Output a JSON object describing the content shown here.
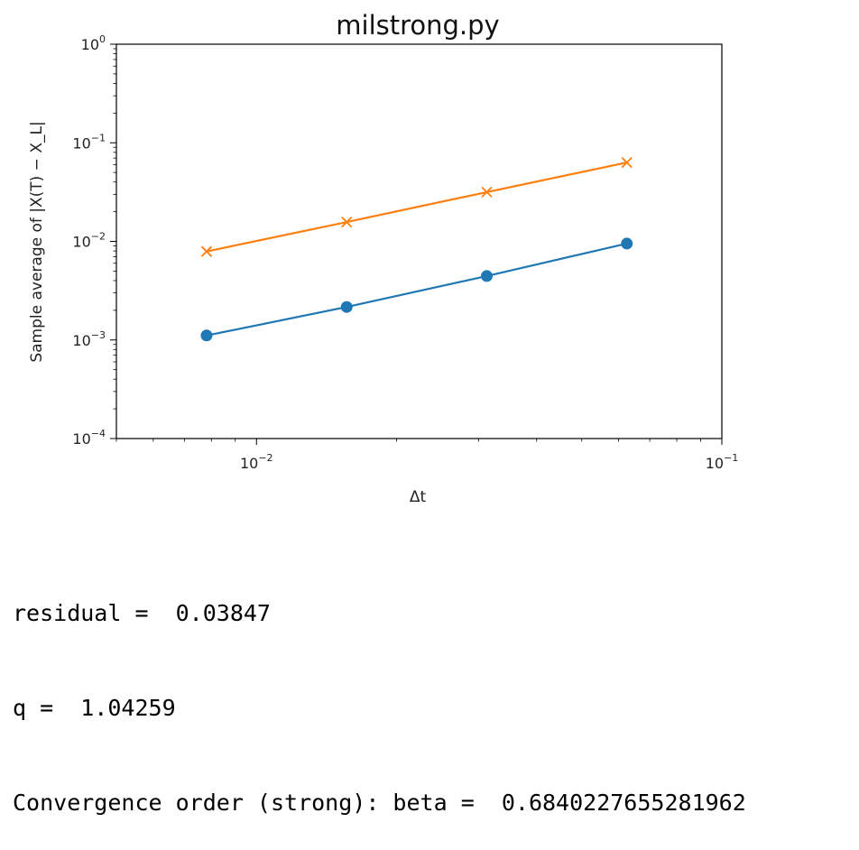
{
  "chart_data": {
    "type": "line",
    "title": "milstrong.py",
    "xlabel": "Δt",
    "ylabel": "Sample average of |X(T) − X_L|",
    "xscale": "log",
    "yscale": "log",
    "xlim": [
      0.005,
      0.1
    ],
    "ylim": [
      0.0001,
      1
    ],
    "xticks": [
      {
        "value": 0.01,
        "base": "10",
        "exp": "−2"
      },
      {
        "value": 0.1,
        "base": "10",
        "exp": "−1"
      }
    ],
    "yticks": [
      {
        "value": 1,
        "base": "10",
        "exp": "0"
      },
      {
        "value": 0.1,
        "base": "10",
        "exp": "−1"
      },
      {
        "value": 0.01,
        "base": "10",
        "exp": "−2"
      },
      {
        "value": 0.001,
        "base": "10",
        "exp": "−3"
      },
      {
        "value": 0.0001,
        "base": "10",
        "exp": "−4"
      }
    ],
    "grid": false,
    "x": [
      0.0078125,
      0.015625,
      0.03125,
      0.0625
    ],
    "series": [
      {
        "color": "#1f77b4",
        "marker": "circle",
        "values": [
          0.00111,
          0.00216,
          0.00445,
          0.0095
        ]
      },
      {
        "color": "#ff7f0e",
        "marker": "x",
        "values": [
          0.0079,
          0.0157,
          0.0316,
          0.0631
        ]
      }
    ]
  },
  "output": {
    "line1": "residual =  0.03847",
    "line2": "q =  1.04259",
    "line3": "Convergence order (strong): beta =  0.6840227655281962"
  }
}
